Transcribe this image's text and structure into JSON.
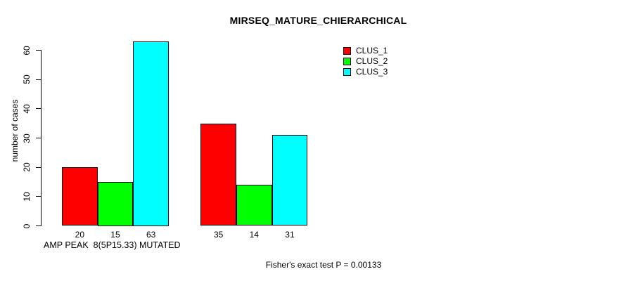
{
  "title": "MIRSEQ_MATURE_CHIERARCHICAL",
  "y_axis": {
    "label": "number of cases",
    "ticks": [
      0,
      10,
      20,
      30,
      40,
      50,
      60
    ]
  },
  "x_axis": {
    "group_label": "AMP PEAK  8(5P15.33) MUTATED"
  },
  "legend": {
    "entries": [
      {
        "label": "CLUS_1",
        "color": "#ff0000"
      },
      {
        "label": "CLUS_2",
        "color": "#00ff00"
      },
      {
        "label": "CLUS_3",
        "color": "#00ffff"
      }
    ]
  },
  "footer": "Fisher's exact test P = 0.00133",
  "chart_data": {
    "type": "bar",
    "title": "MIRSEQ_MATURE_CHIERARCHICAL",
    "xlabel": "AMP PEAK  8(5P15.33) MUTATED",
    "ylabel": "number of cases",
    "ylim": [
      0,
      63
    ],
    "yticks": [
      0,
      10,
      20,
      30,
      40,
      50,
      60
    ],
    "grid": false,
    "legend_position": "top-right",
    "groups": [
      {
        "label": "AMP PEAK  8(5P15.33) MUTATED",
        "values": [
          20,
          15,
          63
        ]
      },
      {
        "label": "",
        "values": [
          35,
          14,
          31
        ]
      }
    ],
    "series": [
      {
        "name": "CLUS_1",
        "color": "#ff0000",
        "values": [
          20,
          35
        ]
      },
      {
        "name": "CLUS_2",
        "color": "#00ff00",
        "values": [
          15,
          14
        ]
      },
      {
        "name": "CLUS_3",
        "color": "#00ffff",
        "values": [
          63,
          31
        ]
      }
    ],
    "annotation": "Fisher's exact test P = 0.00133"
  }
}
